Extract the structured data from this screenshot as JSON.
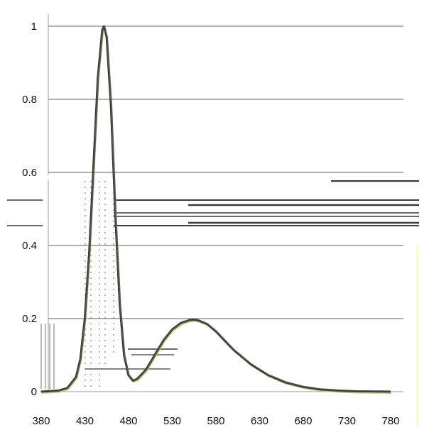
{
  "chart_data": {
    "type": "line",
    "title": "",
    "xlabel": "",
    "ylabel": "",
    "xlim": [
      380,
      780
    ],
    "ylim": [
      0,
      1
    ],
    "grid": true,
    "x_ticks": [
      380,
      430,
      480,
      530,
      580,
      630,
      680,
      730,
      780
    ],
    "y_ticks": [
      0,
      0.2,
      0.4,
      0.6,
      0.8,
      1
    ],
    "y_tick_labels": [
      "0",
      "0.2",
      "0.4",
      "0.6",
      "0.8",
      "1"
    ],
    "series": [
      {
        "x": [
          380,
          400,
          410,
          420,
          425,
          430,
          435,
          440,
          445,
          450,
          452,
          455,
          460,
          465,
          470,
          475,
          480,
          485,
          490,
          500,
          510,
          520,
          530,
          540,
          550,
          555,
          560,
          570,
          580,
          590,
          600,
          620,
          640,
          660,
          680,
          700,
          720,
          740,
          760,
          780
        ],
        "y": [
          0.0,
          0.003,
          0.01,
          0.04,
          0.09,
          0.2,
          0.38,
          0.62,
          0.86,
          0.99,
          1.0,
          0.97,
          0.78,
          0.48,
          0.24,
          0.1,
          0.045,
          0.03,
          0.035,
          0.06,
          0.1,
          0.14,
          0.17,
          0.188,
          0.196,
          0.197,
          0.195,
          0.185,
          0.165,
          0.14,
          0.115,
          0.075,
          0.045,
          0.025,
          0.013,
          0.006,
          0.003,
          0.001,
          0.0005,
          0.0
        ]
      }
    ],
    "colors": {
      "line": "#555555",
      "grid": "#7f7f7f",
      "axis": "#999999",
      "artifact": "#3c3c3c",
      "highlight": "#ffff66"
    }
  }
}
